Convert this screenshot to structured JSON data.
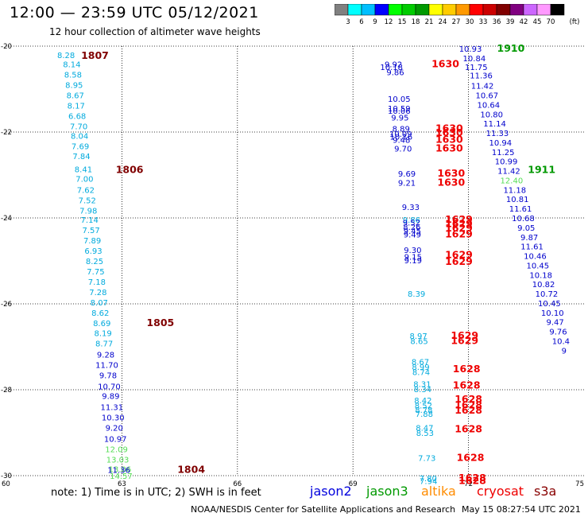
{
  "title": "12:00 — 23:59 UTC 05/12/2021",
  "subtitle": "12 hour collection of altimeter wave heights",
  "colorbar": {
    "unit": "(ft)",
    "ticks": [
      "3",
      "6",
      "9",
      "12",
      "15",
      "18",
      "21",
      "24",
      "27",
      "30",
      "33",
      "36",
      "39",
      "42",
      "45",
      "70"
    ],
    "colors": [
      "#808080",
      "#00ffff",
      "#00bfff",
      "#0000ff",
      "#00ff00",
      "#00cc00",
      "#009900",
      "#ffff00",
      "#ffcc00",
      "#ff9900",
      "#ff0000",
      "#cc0000",
      "#800000",
      "#800080",
      "#cc66ff",
      "#ff99ff",
      "#000000"
    ]
  },
  "note": "note: 1) Time is in UTC; 2) SWH is in feet",
  "satellites": [
    {
      "name": "jason2",
      "color": "#0000dd"
    },
    {
      "name": "jason3",
      "color": "#009900"
    },
    {
      "name": "altika",
      "color": "#ff8c00"
    },
    {
      "name": "cryosat",
      "color": "#ee0000"
    },
    {
      "name": "s3a",
      "color": "#880000"
    }
  ],
  "credit": "NOAA/NESDIS Center for Satellite Applications and Research",
  "timestamp": "May 15 08:27:54 UTC 2021",
  "chart_data": {
    "type": "scatter",
    "xlim": [
      60,
      75
    ],
    "ylim": [
      -30,
      -20
    ],
    "x_ticks": [
      "60",
      "63",
      "66",
      "69",
      "72",
      "75"
    ],
    "y_ticks": [
      "-20",
      "-22",
      "-24",
      "-26",
      "-28",
      "-30"
    ],
    "grid": true,
    "values": [
      {
        "x": 61.55,
        "y": -20.2,
        "v": "8.28",
        "c": "#00aadd"
      },
      {
        "x": 61.7,
        "y": -20.42,
        "v": "8.14",
        "c": "#00aadd"
      },
      {
        "x": 61.73,
        "y": -20.66,
        "v": "8.58",
        "c": "#00aadd"
      },
      {
        "x": 61.76,
        "y": -20.9,
        "v": "8.95",
        "c": "#00aadd"
      },
      {
        "x": 61.79,
        "y": -21.14,
        "v": "8.67",
        "c": "#00aadd"
      },
      {
        "x": 61.81,
        "y": -21.38,
        "v": "8.17",
        "c": "#00aadd"
      },
      {
        "x": 61.84,
        "y": -21.62,
        "v": "6.68",
        "c": "#00aadd"
      },
      {
        "x": 61.88,
        "y": -21.86,
        "v": "7.70",
        "c": "#00aadd"
      },
      {
        "x": 61.9,
        "y": -22.08,
        "v": "8.04",
        "c": "#00aadd"
      },
      {
        "x": 61.92,
        "y": -22.32,
        "v": "7.69",
        "c": "#00aadd"
      },
      {
        "x": 61.95,
        "y": -22.56,
        "v": "7.84",
        "c": "#00aadd"
      },
      {
        "x": 62.0,
        "y": -22.86,
        "v": "8.41",
        "c": "#00aadd"
      },
      {
        "x": 62.03,
        "y": -23.08,
        "v": "7.00",
        "c": "#00aadd"
      },
      {
        "x": 62.06,
        "y": -23.34,
        "v": "7.62",
        "c": "#00aadd"
      },
      {
        "x": 62.1,
        "y": -23.58,
        "v": "7.52",
        "c": "#00aadd"
      },
      {
        "x": 62.13,
        "y": -23.82,
        "v": "7.98",
        "c": "#00aadd"
      },
      {
        "x": 62.16,
        "y": -24.04,
        "v": "7.14",
        "c": "#00aadd"
      },
      {
        "x": 62.2,
        "y": -24.28,
        "v": "7.57",
        "c": "#00aadd"
      },
      {
        "x": 62.23,
        "y": -24.52,
        "v": "7.89",
        "c": "#00aadd"
      },
      {
        "x": 62.26,
        "y": -24.76,
        "v": "6.93",
        "c": "#00aadd"
      },
      {
        "x": 62.29,
        "y": -25.0,
        "v": "8.25",
        "c": "#00aadd"
      },
      {
        "x": 62.32,
        "y": -25.24,
        "v": "7.75",
        "c": "#00aadd"
      },
      {
        "x": 62.35,
        "y": -25.48,
        "v": "7.18",
        "c": "#00aadd"
      },
      {
        "x": 62.38,
        "y": -25.72,
        "v": "7.28",
        "c": "#00aadd"
      },
      {
        "x": 62.41,
        "y": -25.96,
        "v": "8.07",
        "c": "#00aadd"
      },
      {
        "x": 62.44,
        "y": -26.2,
        "v": "8.62",
        "c": "#00aadd"
      },
      {
        "x": 62.48,
        "y": -26.44,
        "v": "8.69",
        "c": "#00aadd"
      },
      {
        "x": 62.51,
        "y": -26.68,
        "v": "8.19",
        "c": "#00aadd"
      },
      {
        "x": 62.54,
        "y": -26.92,
        "v": "8.77",
        "c": "#00aadd"
      },
      {
        "x": 62.58,
        "y": -27.18,
        "v": "9.28",
        "c": "#0000cc"
      },
      {
        "x": 62.61,
        "y": -27.42,
        "v": "11.70",
        "c": "#0000cc"
      },
      {
        "x": 62.64,
        "y": -27.66,
        "v": "9.78",
        "c": "#0000cc"
      },
      {
        "x": 62.67,
        "y": -27.92,
        "v": "10.70",
        "c": "#0000cc"
      },
      {
        "x": 62.71,
        "y": -28.14,
        "v": "9.89",
        "c": "#0000cc"
      },
      {
        "x": 62.74,
        "y": -28.4,
        "v": "11.31",
        "c": "#0000cc"
      },
      {
        "x": 62.77,
        "y": -28.64,
        "v": "10.30",
        "c": "#0000cc"
      },
      {
        "x": 62.8,
        "y": -28.88,
        "v": "9.20",
        "c": "#0000cc"
      },
      {
        "x": 62.83,
        "y": -29.14,
        "v": "10.97",
        "c": "#0000cc"
      },
      {
        "x": 62.86,
        "y": -29.38,
        "v": "12.09",
        "c": "#55dd55"
      },
      {
        "x": 62.89,
        "y": -29.62,
        "v": "13.03",
        "c": "#55dd55"
      },
      {
        "x": 62.95,
        "y": -29.84,
        "v": "13.06",
        "c": "#55dd55"
      },
      {
        "x": 62.92,
        "y": -29.86,
        "v": "11.36",
        "c": "#0000cc"
      },
      {
        "x": 62.98,
        "y": -30.0,
        "v": "14.57",
        "c": "#55dd55"
      },
      {
        "x": 62.3,
        "y": -20.22,
        "v": "1807",
        "c": "#800000"
      },
      {
        "x": 63.2,
        "y": -22.88,
        "v": "1806",
        "c": "#800000"
      },
      {
        "x": 64.0,
        "y": -26.44,
        "v": "1805",
        "c": "#800000"
      },
      {
        "x": 64.8,
        "y": -29.86,
        "v": "1804",
        "c": "#800000"
      },
      {
        "x": 70.05,
        "y": -20.42,
        "v": "9.92",
        "c": "#0000cc"
      },
      {
        "x": 70.0,
        "y": -20.48,
        "v": "10.18",
        "c": "#0000cc"
      },
      {
        "x": 70.1,
        "y": -20.6,
        "v": "9.86",
        "c": "#0000cc"
      },
      {
        "x": 71.4,
        "y": -20.42,
        "v": "1630",
        "c": "#ee0000"
      },
      {
        "x": 70.2,
        "y": -21.22,
        "v": "10.05",
        "c": "#0000cc"
      },
      {
        "x": 70.2,
        "y": -21.44,
        "v": "10.59",
        "c": "#0000cc"
      },
      {
        "x": 70.2,
        "y": -21.5,
        "v": "10.06",
        "c": "#0000cc"
      },
      {
        "x": 70.22,
        "y": -21.66,
        "v": "9.95",
        "c": "#0000cc"
      },
      {
        "x": 70.25,
        "y": -21.92,
        "v": "8.89",
        "c": "#0000cc"
      },
      {
        "x": 70.24,
        "y": -22.04,
        "v": "10.09",
        "c": "#0000cc"
      },
      {
        "x": 70.25,
        "y": -22.1,
        "v": "10.16",
        "c": "#0000cc"
      },
      {
        "x": 70.26,
        "y": -22.18,
        "v": "9.48",
        "c": "#0000cc"
      },
      {
        "x": 70.3,
        "y": -22.38,
        "v": "9.70",
        "c": "#0000cc"
      },
      {
        "x": 71.5,
        "y": -21.92,
        "v": "1630",
        "c": "#ee0000"
      },
      {
        "x": 71.5,
        "y": -22.02,
        "v": "1630",
        "c": "#ee0000"
      },
      {
        "x": 71.5,
        "y": -22.18,
        "v": "1630",
        "c": "#ee0000"
      },
      {
        "x": 71.5,
        "y": -22.38,
        "v": "1630",
        "c": "#ee0000"
      },
      {
        "x": 70.4,
        "y": -22.96,
        "v": "9.69",
        "c": "#0000cc"
      },
      {
        "x": 70.4,
        "y": -23.18,
        "v": "9.21",
        "c": "#0000cc"
      },
      {
        "x": 71.55,
        "y": -22.96,
        "v": "1630",
        "c": "#ee0000"
      },
      {
        "x": 71.55,
        "y": -23.18,
        "v": "1630",
        "c": "#ee0000"
      },
      {
        "x": 70.5,
        "y": -23.74,
        "v": "9.33",
        "c": "#0000cc"
      },
      {
        "x": 70.52,
        "y": -24.04,
        "v": "9.86",
        "c": "#00aadd"
      },
      {
        "x": 70.52,
        "y": -24.1,
        "v": "9.52",
        "c": "#0000cc"
      },
      {
        "x": 70.53,
        "y": -24.2,
        "v": "8.26",
        "c": "#0000cc"
      },
      {
        "x": 70.54,
        "y": -24.3,
        "v": "9.45",
        "c": "#0000cc"
      },
      {
        "x": 70.54,
        "y": -24.38,
        "v": "9.49",
        "c": "#0000cc"
      },
      {
        "x": 71.75,
        "y": -24.04,
        "v": "1629",
        "c": "#ee0000"
      },
      {
        "x": 71.75,
        "y": -24.14,
        "v": "1629",
        "c": "#ee0000"
      },
      {
        "x": 71.75,
        "y": -24.24,
        "v": "1629",
        "c": "#ee0000"
      },
      {
        "x": 71.75,
        "y": -24.38,
        "v": "1629",
        "c": "#ee0000"
      },
      {
        "x": 70.55,
        "y": -24.74,
        "v": "9.30",
        "c": "#0000cc"
      },
      {
        "x": 70.56,
        "y": -24.9,
        "v": "9.15",
        "c": "#0000cc"
      },
      {
        "x": 70.56,
        "y": -24.98,
        "v": "9.19",
        "c": "#0000cc"
      },
      {
        "x": 71.75,
        "y": -24.86,
        "v": "1629",
        "c": "#ee0000"
      },
      {
        "x": 71.75,
        "y": -25.02,
        "v": "1629",
        "c": "#ee0000"
      },
      {
        "x": 70.65,
        "y": -25.76,
        "v": "8.39",
        "c": "#00aadd"
      },
      {
        "x": 70.7,
        "y": -26.74,
        "v": "8.97",
        "c": "#00aadd"
      },
      {
        "x": 70.72,
        "y": -26.86,
        "v": "8.65",
        "c": "#00aadd"
      },
      {
        "x": 71.9,
        "y": -26.74,
        "v": "1629",
        "c": "#ee0000"
      },
      {
        "x": 71.9,
        "y": -26.86,
        "v": "1629",
        "c": "#ee0000"
      },
      {
        "x": 70.75,
        "y": -27.34,
        "v": "8.67",
        "c": "#00aadd"
      },
      {
        "x": 70.76,
        "y": -27.46,
        "v": "8.99",
        "c": "#00aadd"
      },
      {
        "x": 70.77,
        "y": -27.58,
        "v": "8.74",
        "c": "#00aadd"
      },
      {
        "x": 71.95,
        "y": -27.52,
        "v": "1628",
        "c": "#ee0000"
      },
      {
        "x": 70.8,
        "y": -27.86,
        "v": "8.31",
        "c": "#00aadd"
      },
      {
        "x": 70.81,
        "y": -27.98,
        "v": "8.34",
        "c": "#00aadd"
      },
      {
        "x": 71.95,
        "y": -27.9,
        "v": "1628",
        "c": "#ee0000"
      },
      {
        "x": 70.82,
        "y": -28.24,
        "v": "8.42",
        "c": "#00aadd"
      },
      {
        "x": 70.83,
        "y": -28.36,
        "v": "8.52",
        "c": "#00aadd"
      },
      {
        "x": 70.84,
        "y": -28.46,
        "v": "8.78",
        "c": "#00aadd"
      },
      {
        "x": 70.85,
        "y": -28.56,
        "v": "7.88",
        "c": "#00aadd"
      },
      {
        "x": 72.0,
        "y": -28.22,
        "v": "1628",
        "c": "#ee0000"
      },
      {
        "x": 72.0,
        "y": -28.36,
        "v": "1628",
        "c": "#ee0000"
      },
      {
        "x": 72.0,
        "y": -28.48,
        "v": "1628",
        "c": "#ee0000"
      },
      {
        "x": 70.86,
        "y": -28.88,
        "v": "8.47",
        "c": "#00aadd"
      },
      {
        "x": 70.87,
        "y": -29.0,
        "v": "8.53",
        "c": "#00aadd"
      },
      {
        "x": 72.0,
        "y": -28.92,
        "v": "1628",
        "c": "#ee0000"
      },
      {
        "x": 70.92,
        "y": -29.58,
        "v": "7.73",
        "c": "#00aadd"
      },
      {
        "x": 72.05,
        "y": -29.58,
        "v": "1628",
        "c": "#ee0000"
      },
      {
        "x": 70.95,
        "y": -30.06,
        "v": "7.80",
        "c": "#00aadd"
      },
      {
        "x": 70.96,
        "y": -30.12,
        "v": "7.94",
        "c": "#00aadd"
      },
      {
        "x": 72.1,
        "y": -30.06,
        "v": "1628",
        "c": "#ee0000"
      },
      {
        "x": 72.1,
        "y": -30.12,
        "v": "1628",
        "c": "#ee0000"
      },
      {
        "x": 72.05,
        "y": -20.06,
        "v": "10.93",
        "c": "#0000cc"
      },
      {
        "x": 73.1,
        "y": -20.06,
        "v": "1910",
        "c": "#009900"
      },
      {
        "x": 72.15,
        "y": -20.28,
        "v": "10.84",
        "c": "#0000cc"
      },
      {
        "x": 72.2,
        "y": -20.48,
        "v": "11.75",
        "c": "#0000cc"
      },
      {
        "x": 72.33,
        "y": -20.68,
        "v": "11.36",
        "c": "#0000cc"
      },
      {
        "x": 72.36,
        "y": -20.92,
        "v": "11.42",
        "c": "#0000cc"
      },
      {
        "x": 72.48,
        "y": -21.14,
        "v": "10.67",
        "c": "#0000cc"
      },
      {
        "x": 72.52,
        "y": -21.36,
        "v": "10.64",
        "c": "#0000cc"
      },
      {
        "x": 72.6,
        "y": -21.58,
        "v": "10.80",
        "c": "#0000cc"
      },
      {
        "x": 72.68,
        "y": -21.8,
        "v": "11.14",
        "c": "#0000cc"
      },
      {
        "x": 72.75,
        "y": -22.02,
        "v": "11.33",
        "c": "#0000cc"
      },
      {
        "x": 72.83,
        "y": -22.24,
        "v": "10.94",
        "c": "#0000cc"
      },
      {
        "x": 72.9,
        "y": -22.46,
        "v": "11.25",
        "c": "#0000cc"
      },
      {
        "x": 72.98,
        "y": -22.68,
        "v": "10.99",
        "c": "#0000cc"
      },
      {
        "x": 73.05,
        "y": -22.9,
        "v": "11.42",
        "c": "#0000cc"
      },
      {
        "x": 73.9,
        "y": -22.88,
        "v": "1911",
        "c": "#009900"
      },
      {
        "x": 73.12,
        "y": -23.12,
        "v": "12.40",
        "c": "#55dd55"
      },
      {
        "x": 73.2,
        "y": -23.34,
        "v": "11.18",
        "c": "#0000cc"
      },
      {
        "x": 73.27,
        "y": -23.56,
        "v": "10.81",
        "c": "#0000cc"
      },
      {
        "x": 73.35,
        "y": -23.78,
        "v": "11.61",
        "c": "#0000cc"
      },
      {
        "x": 73.42,
        "y": -24.0,
        "v": "10.68",
        "c": "#0000cc"
      },
      {
        "x": 73.5,
        "y": -24.22,
        "v": "9.05",
        "c": "#0000cc"
      },
      {
        "x": 73.58,
        "y": -24.44,
        "v": "9.87",
        "c": "#0000cc"
      },
      {
        "x": 73.65,
        "y": -24.66,
        "v": "11.61",
        "c": "#0000cc"
      },
      {
        "x": 73.73,
        "y": -24.88,
        "v": "10.46",
        "c": "#0000cc"
      },
      {
        "x": 73.8,
        "y": -25.1,
        "v": "10.45",
        "c": "#0000cc"
      },
      {
        "x": 73.88,
        "y": -25.32,
        "v": "10.18",
        "c": "#0000cc"
      },
      {
        "x": 73.95,
        "y": -25.54,
        "v": "10.82",
        "c": "#0000cc"
      },
      {
        "x": 74.03,
        "y": -25.76,
        "v": "10.72",
        "c": "#0000cc"
      },
      {
        "x": 74.1,
        "y": -25.98,
        "v": "10.45",
        "c": "#0000cc"
      },
      {
        "x": 74.18,
        "y": -26.2,
        "v": "10.10",
        "c": "#0000cc"
      },
      {
        "x": 74.25,
        "y": -26.42,
        "v": "9.47",
        "c": "#0000cc"
      },
      {
        "x": 74.33,
        "y": -26.64,
        "v": "9.76",
        "c": "#0000cc"
      },
      {
        "x": 74.4,
        "y": -26.86,
        "v": "10.4",
        "c": "#0000cc"
      },
      {
        "x": 74.48,
        "y": -27.08,
        "v": "9",
        "c": "#0000cc"
      }
    ]
  }
}
